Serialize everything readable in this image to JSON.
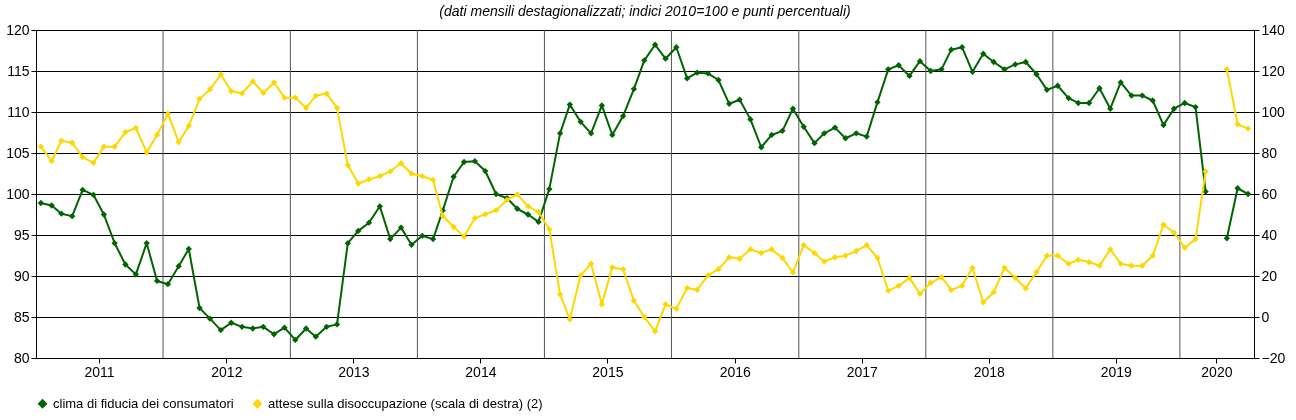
{
  "chart_data": {
    "type": "line",
    "title": "(dati mensili destagionalizzati; indici 2010=100 e punti percentuali)",
    "x": [
      "2011-01-15",
      "2011-02-15",
      "2011-03-15",
      "2011-04-15",
      "2011-05-15",
      "2011-06-15",
      "2011-07-15",
      "2011-08-15",
      "2011-09-15",
      "2011-10-15",
      "2011-11-15",
      "2011-12-15",
      "2012-01-15",
      "2012-02-15",
      "2012-03-15",
      "2012-04-15",
      "2012-05-15",
      "2012-06-15",
      "2012-07-15",
      "2012-08-15",
      "2012-09-15",
      "2012-10-15",
      "2012-11-15",
      "2012-12-15",
      "2013-01-15",
      "2013-02-15",
      "2013-03-15",
      "2013-04-15",
      "2013-05-15",
      "2013-06-15",
      "2013-07-15",
      "2013-08-15",
      "2013-09-15",
      "2013-10-15",
      "2013-11-15",
      "2013-12-15",
      "2014-01-15",
      "2014-02-15",
      "2014-03-15",
      "2014-04-15",
      "2014-05-15",
      "2014-06-15",
      "2014-07-15",
      "2014-08-15",
      "2014-09-15",
      "2014-10-15",
      "2014-11-15",
      "2014-12-15",
      "2015-01-15",
      "2015-02-15",
      "2015-03-15",
      "2015-04-15",
      "2015-05-15",
      "2015-06-15",
      "2015-07-15",
      "2015-08-15",
      "2015-09-15",
      "2015-10-15",
      "2015-11-15",
      "2015-12-15",
      "2016-01-15",
      "2016-02-15",
      "2016-03-15",
      "2016-04-15",
      "2016-05-15",
      "2016-06-15",
      "2016-07-15",
      "2016-08-15",
      "2016-09-15",
      "2016-10-15",
      "2016-11-15",
      "2016-12-15",
      "2017-01-15",
      "2017-02-15",
      "2017-03-15",
      "2017-04-15",
      "2017-05-15",
      "2017-06-15",
      "2017-07-15",
      "2017-08-15",
      "2017-09-15",
      "2017-10-15",
      "2017-11-15",
      "2017-12-15",
      "2018-01-15",
      "2018-02-15",
      "2018-03-15",
      "2018-04-15",
      "2018-05-15",
      "2018-06-15",
      "2018-07-15",
      "2018-08-15",
      "2018-09-15",
      "2018-10-15",
      "2018-11-15",
      "2018-12-15",
      "2019-01-15",
      "2019-02-15",
      "2019-03-15",
      "2019-04-15",
      "2019-05-15",
      "2019-06-15",
      "2019-07-15",
      "2019-08-15",
      "2019-09-15",
      "2019-10-15",
      "2019-11-15",
      "2019-12-15",
      "2020-01-15",
      "2020-02-15",
      "2020-03-15",
      "2020-04-15",
      "2020-05-15",
      "2020-06-15",
      "2020-07-15"
    ],
    "series": [
      {
        "name": "clima di fiducia dei consumatori",
        "color": "#006400",
        "values": [
          98.9,
          98.6,
          97.6,
          97.3,
          100.5,
          99.9,
          97.5,
          94.0,
          91.4,
          90.2,
          94.0,
          89.4,
          89.0,
          91.2,
          93.3,
          86.1,
          84.8,
          83.4,
          84.3,
          83.8,
          83.6,
          83.8,
          82.9,
          83.7,
          82.2,
          83.6,
          82.6,
          83.8,
          84.1,
          94.0,
          95.5,
          96.5,
          98.5,
          94.5,
          95.9,
          93.8,
          94.9,
          94.5,
          98.0,
          102.1,
          103.9,
          104.0,
          102.8,
          100.0,
          99.5,
          98.2,
          97.5,
          96.6,
          100.6,
          107.4,
          110.9,
          108.8,
          107.4,
          110.8,
          107.2,
          109.5,
          112.8,
          116.3,
          118.2,
          116.5,
          117.9,
          114.1,
          114.8,
          114.7,
          113.9,
          111.0,
          111.5,
          109.1,
          105.7,
          107.2,
          107.7,
          110.4,
          108.2,
          106.2,
          107.4,
          108.1,
          106.8,
          107.4,
          107.0,
          111.2,
          115.2,
          115.7,
          114.4,
          116.2,
          115.0,
          115.2,
          117.6,
          117.9,
          114.9,
          117.1,
          116.1,
          115.2,
          115.8,
          116.1,
          114.6,
          112.7,
          113.2,
          111.7,
          111.1,
          111.1,
          112.9,
          110.4,
          113.6,
          112.0,
          112.0,
          111.4,
          108.4,
          110.4,
          111.1,
          110.6,
          100.3,
          null,
          94.6,
          100.7,
          100.0
        ]
      },
      {
        "name": "attese sulla disoccupazione (scala di destra) (2)",
        "color": "#ffd700",
        "axis": "y2",
        "values": [
          83.1,
          76.1,
          86.0,
          85.0,
          78.0,
          75.2,
          83.1,
          83.1,
          90.2,
          92.2,
          80.3,
          88.8,
          99.2,
          85.3,
          93.2,
          106.4,
          111.0,
          118.3,
          110.1,
          109.1,
          114.9,
          109.3,
          114.4,
          107.0,
          107.0,
          102.0,
          107.9,
          109.0,
          102.0,
          74.1,
          65.1,
          67.1,
          68.7,
          71.0,
          75.0,
          69.9,
          68.7,
          66.8,
          49.3,
          43.9,
          39.2,
          48.2,
          50.1,
          52.1,
          57.1,
          59.8,
          54.0,
          51.2,
          42.8,
          11.0,
          -1.1,
          20.2,
          26.0,
          6.2,
          24.2,
          23.3,
          8.0,
          0.0,
          -7.0,
          6.2,
          4.0,
          14.1,
          13.3,
          20.3,
          23.3,
          29.1,
          28.4,
          33.0,
          31.2,
          33.0,
          28.8,
          21.7,
          35.0,
          31.2,
          27.1,
          29.1,
          29.9,
          32.2,
          35.0,
          28.8,
          12.9,
          15.2,
          19.1,
          11.3,
          16.7,
          19.4,
          13.2,
          15.2,
          24.0,
          7.1,
          12.1,
          24.0,
          19.1,
          14.0,
          21.9,
          29.9,
          29.9,
          26.0,
          27.9,
          26.8,
          25.0,
          33.0,
          26.0,
          25.0,
          25.0,
          29.9,
          45.0,
          41.2,
          33.8,
          38.0,
          71.0,
          null,
          120.9,
          94.0,
          91.9
        ]
      }
    ],
    "xlim": [
      "2011-01-01",
      "2020-08-01"
    ],
    "xticks": [
      {
        "value": "2011-07-01",
        "label": "2011"
      },
      {
        "value": "2012-07-01",
        "label": "2012"
      },
      {
        "value": "2013-07-01",
        "label": "2013"
      },
      {
        "value": "2014-07-01",
        "label": "2014"
      },
      {
        "value": "2015-07-01",
        "label": "2015"
      },
      {
        "value": "2016-07-01",
        "label": "2016"
      },
      {
        "value": "2017-07-01",
        "label": "2017"
      },
      {
        "value": "2018-07-01",
        "label": "2018"
      },
      {
        "value": "2019-07-01",
        "label": "2019"
      },
      {
        "value": "2020-04-15",
        "label": "2020"
      },
      {
        "value": "2012-01-01",
        "label": null
      },
      {
        "value": "2013-01-01",
        "label": null
      },
      {
        "value": "2014-01-01",
        "label": null
      },
      {
        "value": "2015-01-01",
        "label": null
      },
      {
        "value": "2016-01-01",
        "label": null
      },
      {
        "value": "2017-01-01",
        "label": null
      },
      {
        "value": "2018-01-01",
        "label": null
      },
      {
        "value": "2019-01-01",
        "label": null
      },
      {
        "value": "2020-01-01",
        "label": null
      }
    ],
    "ylim": [
      80,
      120
    ],
    "yticks": [
      80,
      85,
      90,
      95,
      100,
      105,
      110,
      115,
      120
    ],
    "y2lim": [
      -20,
      140
    ],
    "y2ticks": [
      -20,
      0,
      20,
      40,
      60,
      80,
      100,
      120,
      140
    ],
    "grid": true,
    "legend": "bottom",
    "marker": "diamond",
    "line_style": "solid"
  }
}
